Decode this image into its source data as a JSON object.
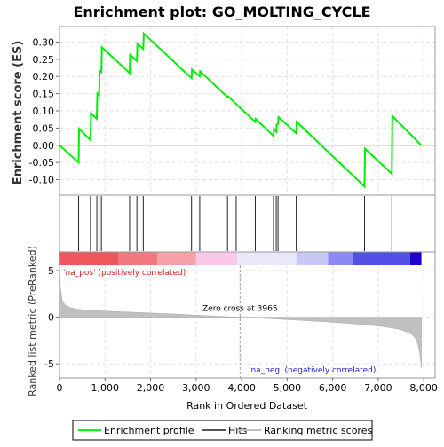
{
  "chart_data": {
    "type": "line",
    "title": "Enrichment plot: GO_MOLTING_CYCLE",
    "es_panel": {
      "ylabel": "Enrichment score (ES)",
      "ylim": [
        -0.145,
        0.345
      ],
      "yticks": [
        -0.1,
        -0.05,
        0.0,
        0.05,
        0.1,
        0.15,
        0.2,
        0.25,
        0.3
      ],
      "ytick_labels": [
        "-0.10",
        "-0.05",
        "0.00",
        "0.05",
        "0.10",
        "0.15",
        "0.20",
        "0.25",
        "0.30"
      ],
      "series": [
        {
          "name": "Enrichment profile",
          "color": "#00ff00",
          "x": [
            0,
            420,
            430,
            680,
            690,
            820,
            830,
            870,
            880,
            920,
            930,
            1540,
            1550,
            1700,
            1710,
            1840,
            1850,
            2900,
            2910,
            3080,
            3090,
            3690,
            3700,
            4300,
            4310,
            4700,
            4710,
            4760,
            4770,
            4800,
            4810,
            5200,
            5210,
            6700,
            6710,
            7300,
            7310,
            7950
          ],
          "y": [
            0.0,
            -0.05,
            0.048,
            0.015,
            0.093,
            0.077,
            0.153,
            0.143,
            0.217,
            0.213,
            0.285,
            0.21,
            0.263,
            0.245,
            0.295,
            0.28,
            0.325,
            0.195,
            0.22,
            0.2,
            0.215,
            0.14,
            0.142,
            0.068,
            0.077,
            0.027,
            0.048,
            0.04,
            0.06,
            0.062,
            0.082,
            0.035,
            0.068,
            -0.12,
            -0.01,
            -0.083,
            0.085,
            0.0
          ]
        }
      ]
    },
    "hits": [
      420,
      680,
      820,
      870,
      920,
      1540,
      1700,
      1840,
      2900,
      3080,
      3690,
      3880,
      4300,
      4700,
      4760,
      4800,
      5200,
      6700,
      7300
    ],
    "rank_bar": {
      "segments": [
        {
          "from": 0,
          "to": 1300,
          "color": "#f0565e"
        },
        {
          "from": 1300,
          "to": 2150,
          "color": "#f27880"
        },
        {
          "from": 2150,
          "to": 3000,
          "color": "#f5a1a8"
        },
        {
          "from": 3000,
          "to": 3900,
          "color": "#fac8e8"
        },
        {
          "from": 3900,
          "to": 5200,
          "color": "#e8e8f8"
        },
        {
          "from": 5200,
          "to": 5900,
          "color": "#c8c8f5"
        },
        {
          "from": 5900,
          "to": 6450,
          "color": "#8a8af0"
        },
        {
          "from": 6450,
          "to": 7700,
          "color": "#5050e6"
        },
        {
          "from": 7700,
          "to": 7950,
          "color": "#2000cc"
        }
      ]
    },
    "metric_panel": {
      "ylabel": "Ranked list metric (PreRanked)",
      "ylim": [
        -6.5,
        7.0
      ],
      "yticks": [
        -5,
        0,
        5
      ],
      "ytick_labels": [
        "-5",
        "0",
        "5"
      ],
      "series": [
        {
          "name": "Ranking metric scores",
          "color": "#c0c0c0",
          "x": [
            0,
            20,
            60,
            120,
            250,
            400,
            700,
            1000,
            1500,
            2000,
            2500,
            3000,
            3500,
            3965,
            4500,
            5000,
            5500,
            6000,
            6500,
            7000,
            7300,
            7500,
            7650,
            7750,
            7820,
            7870,
            7910,
            7950
          ],
          "y": [
            6.0,
            3.2,
            1.8,
            1.3,
            1.0,
            0.85,
            0.75,
            0.65,
            0.55,
            0.45,
            0.35,
            0.22,
            0.1,
            0.0,
            -0.12,
            -0.25,
            -0.4,
            -0.55,
            -0.72,
            -0.95,
            -1.15,
            -1.35,
            -1.6,
            -1.9,
            -2.3,
            -2.9,
            -3.8,
            -5.4
          ]
        }
      ],
      "zero_cross": 3965,
      "zero_cross_label": "Zero cross at 3965",
      "pos_label": "'na_pos' (positively correlated)",
      "neg_label": "'na_neg' (negatively correlated)"
    },
    "x_axis": {
      "xlabel": "Rank in Ordered Dataset",
      "xlim": [
        0,
        8250
      ],
      "xticks": [
        0,
        1000,
        2000,
        3000,
        4000,
        5000,
        6000,
        7000,
        8000
      ],
      "xtick_labels": [
        "0",
        "1,000",
        "2,000",
        "3,000",
        "4,000",
        "5,000",
        "6,000",
        "7,000",
        "8,000"
      ]
    },
    "legend": {
      "placement": "bottom",
      "items": [
        {
          "label": "Enrichment profile",
          "color": "#00ff00"
        },
        {
          "label": "Hits",
          "color": "#555555"
        },
        {
          "label": "Ranking metric scores",
          "color": "#c0c0c0"
        }
      ]
    }
  }
}
